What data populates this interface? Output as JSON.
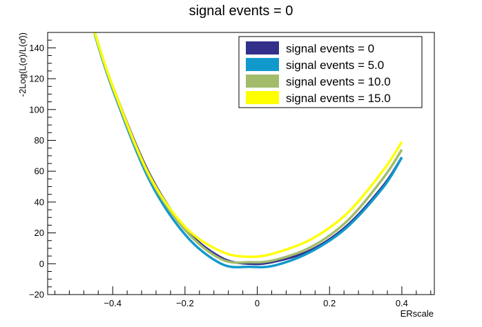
{
  "chart_data": {
    "type": "line",
    "title": "signal events = 0",
    "xlabel": "ERscale",
    "ylabel": "-2Log(L(σ)/L(σ̂))",
    "xlim": [
      -0.58,
      0.49
    ],
    "ylim": [
      -20,
      150
    ],
    "xticks": [
      -0.4,
      -0.2,
      0,
      0.2,
      0.4
    ],
    "xtick_labels": [
      "−0.4",
      "−0.2",
      "0",
      "0.2",
      "0.4"
    ],
    "yticks": [
      -20,
      0,
      20,
      40,
      60,
      80,
      100,
      120,
      140
    ],
    "ytick_labels": [
      "−20",
      "0",
      "20",
      "40",
      "60",
      "80",
      "100",
      "120",
      "140"
    ],
    "grid": false,
    "legend_position": "top-right",
    "x": [
      -0.45,
      -0.4,
      -0.3,
      -0.2,
      -0.1,
      -0.02,
      0.05,
      0.15,
      0.25,
      0.35,
      0.4
    ],
    "series": [
      {
        "name": "signal events = 0",
        "color": "#33308c",
        "values": [
          150,
          115,
          59,
          23,
          4,
          0,
          1.5,
          9,
          25,
          51,
          69
        ]
      },
      {
        "name": "signal events = 5.0",
        "color": "#1199cc",
        "values": [
          149,
          113,
          55,
          19,
          0,
          -2,
          -1,
          8,
          24,
          50,
          69
        ]
      },
      {
        "name": "signal events = 10.0",
        "color": "#a2bc6c",
        "values": [
          150,
          114,
          57,
          22,
          3,
          1,
          2.5,
          11,
          28,
          56,
          74
        ]
      },
      {
        "name": "signal events = 15.0",
        "color": "#ffff00",
        "values": [
          150,
          115,
          58,
          24,
          8,
          4.5,
          7,
          16,
          33,
          61,
          79
        ]
      }
    ]
  }
}
